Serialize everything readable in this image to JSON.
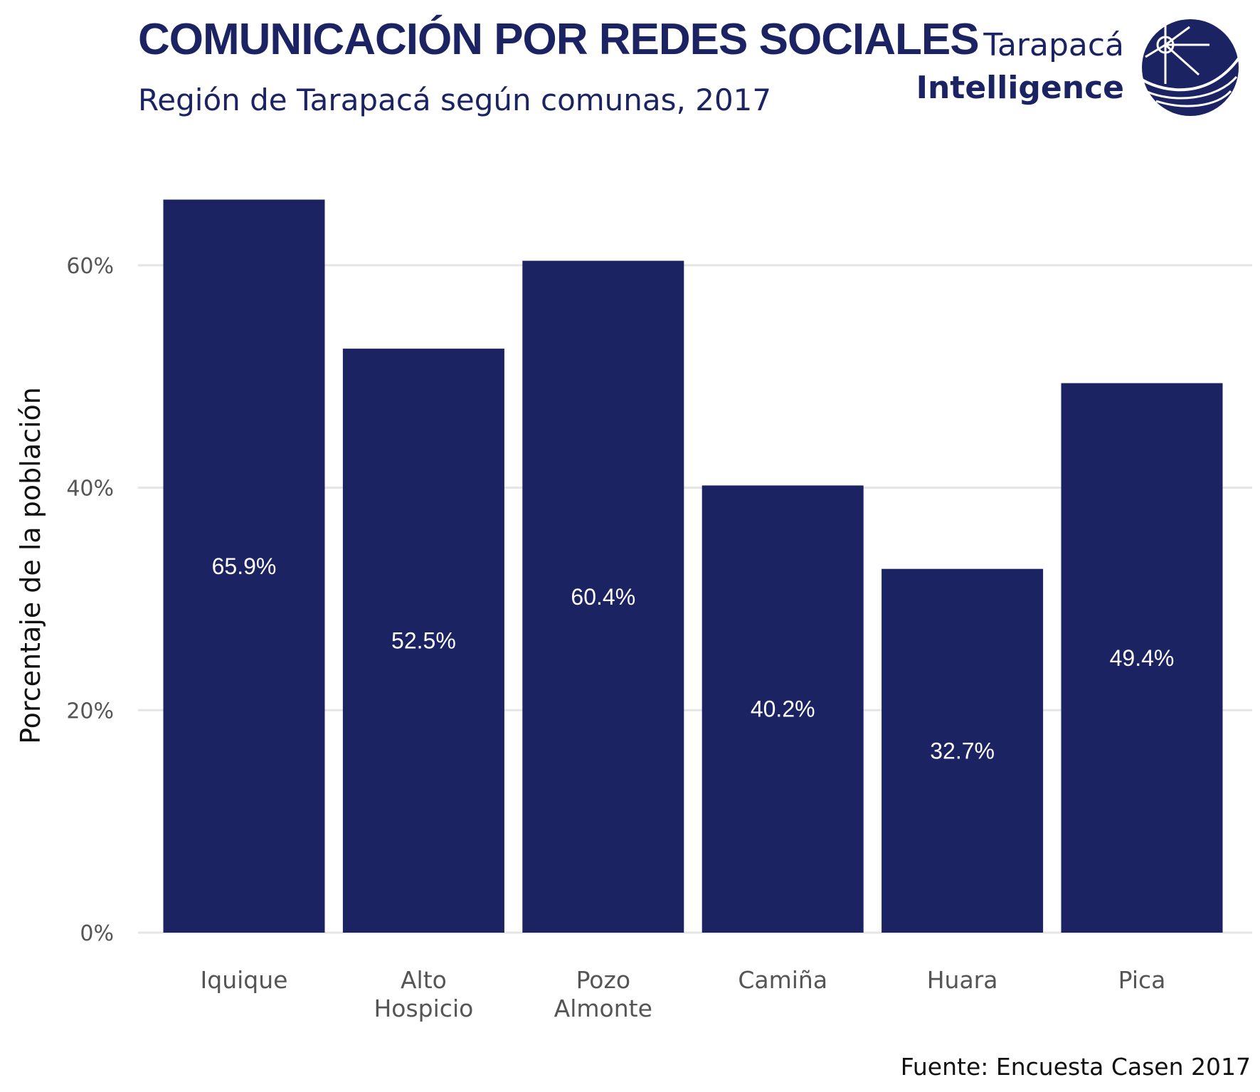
{
  "header": {
    "title": "COMUNICACIÓN POR REDES SOCIALES",
    "subtitle": "Región de Tarapacá según comunas, 2017"
  },
  "logo": {
    "line1": "Tarapacá",
    "line2": "Intelligence",
    "icon": "sun-wave-emblem-icon"
  },
  "source": "Fuente: Encuesta Casen 2017",
  "colors": {
    "bar": "#1c2363",
    "grid": "#e5e5e5",
    "brand": "#1c2363"
  },
  "chart_data": {
    "type": "bar",
    "categories": [
      [
        "Iquique"
      ],
      [
        "Alto",
        "Hospicio"
      ],
      [
        "Pozo",
        "Almonte"
      ],
      [
        "Camiña"
      ],
      [
        "Huara"
      ],
      [
        "Pica"
      ]
    ],
    "values": [
      65.9,
      52.5,
      60.4,
      40.2,
      32.7,
      49.4
    ],
    "data_labels": [
      "65.9%",
      "52.5%",
      "60.4%",
      "40.2%",
      "32.7%",
      "49.4%"
    ],
    "title": "COMUNICACIÓN POR REDES SOCIALES",
    "subtitle": "Región de Tarapacá según comunas, 2017",
    "xlabel": "",
    "ylabel": "Porcentaje de la población",
    "ylim": [
      0,
      66
    ],
    "yticks": [
      0,
      20,
      40,
      60
    ],
    "ytick_labels": [
      "0%",
      "20%",
      "40%",
      "60%"
    ],
    "grid": true,
    "legend": "none"
  }
}
